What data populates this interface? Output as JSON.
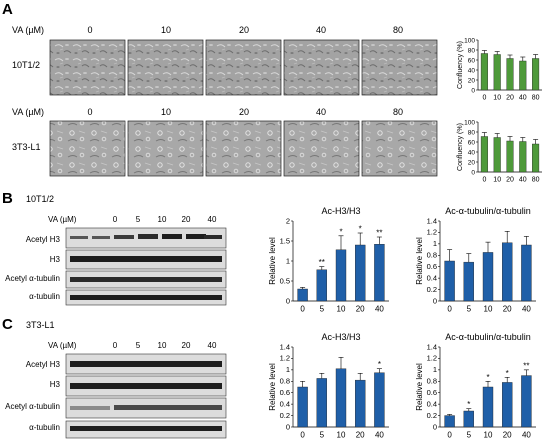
{
  "panels": {
    "A": {
      "letter": "A",
      "conc_label": "VA (µM)",
      "concentrations": [
        "0",
        "10",
        "20",
        "40",
        "80"
      ],
      "rows": [
        {
          "cell_line": "10T1/2"
        },
        {
          "cell_line": "3T3-L1"
        }
      ]
    },
    "B": {
      "letter": "B",
      "cell_line": "10T1/2",
      "conc_label": "VA (µM)",
      "concentrations": [
        "0",
        "5",
        "10",
        "20",
        "40"
      ],
      "blot_labels": [
        "Acetyl H3",
        "H3",
        "Acetyl α-tubulin",
        "α-tubulin"
      ]
    },
    "C": {
      "letter": "C",
      "cell_line": "3T3-L1",
      "conc_label": "VA (µM)",
      "concentrations": [
        "0",
        "5",
        "10",
        "20",
        "40"
      ],
      "blot_labels": [
        "Acetyl H3",
        "H3",
        "Acetyl α-tubulin",
        "α-tubulin"
      ]
    }
  },
  "colors": {
    "green_bar": "#4e9a3a",
    "blue_bar": "#1f5fa8",
    "blot_bg": "#dcdcdc",
    "band": "#1e1e1e",
    "micrograph_bg": "#9a9a9a"
  },
  "chart_data": [
    {
      "id": "A-10T1/2",
      "type": "bar",
      "title": "",
      "ylabel": "Confluency (%)",
      "categories": [
        "0",
        "10",
        "20",
        "40",
        "80"
      ],
      "values": [
        73,
        71,
        63,
        58,
        63
      ],
      "errors": [
        6,
        6,
        7,
        8,
        8
      ],
      "ylim": [
        0,
        100
      ],
      "yticks": [
        0,
        20,
        40,
        60,
        80,
        100
      ],
      "significance": [
        "",
        "",
        "",
        "",
        ""
      ],
      "color": "#4e9a3a"
    },
    {
      "id": "A-3T3-L1",
      "type": "bar",
      "title": "",
      "ylabel": "Confluency (%)",
      "categories": [
        "0",
        "10",
        "20",
        "40",
        "80"
      ],
      "values": [
        71,
        69,
        62,
        61,
        56
      ],
      "errors": [
        8,
        8,
        9,
        8,
        9
      ],
      "ylim": [
        0,
        100
      ],
      "yticks": [
        0,
        20,
        40,
        60,
        80,
        100
      ],
      "significance": [
        "",
        "",
        "",
        "",
        ""
      ],
      "color": "#4e9a3a"
    },
    {
      "id": "B-AcH3",
      "type": "bar",
      "title": "Ac-H3/H3",
      "ylabel": "Relative level",
      "categories": [
        "0",
        "5",
        "10",
        "20",
        "40"
      ],
      "values": [
        0.3,
        0.78,
        1.28,
        1.4,
        1.42
      ],
      "errors": [
        0.04,
        0.08,
        0.35,
        0.3,
        0.18
      ],
      "ylim": [
        0,
        2.0
      ],
      "yticks": [
        0,
        0.5,
        1.0,
        1.5,
        2.0
      ],
      "significance": [
        "",
        "**",
        "*",
        "*",
        "**"
      ],
      "color": "#1f5fa8"
    },
    {
      "id": "B-AcTub",
      "type": "bar",
      "title": "Ac-α-tubulin/α-tubulin",
      "ylabel": "Relative level",
      "categories": [
        "0",
        "5",
        "10",
        "20",
        "40"
      ],
      "values": [
        0.7,
        0.68,
        0.85,
        1.02,
        0.98
      ],
      "errors": [
        0.2,
        0.15,
        0.18,
        0.2,
        0.15
      ],
      "ylim": [
        0,
        1.4
      ],
      "yticks": [
        0,
        0.2,
        0.4,
        0.6,
        0.8,
        1.0,
        1.2,
        1.4
      ],
      "significance": [
        "",
        "",
        "",
        "",
        ""
      ],
      "color": "#1f5fa8"
    },
    {
      "id": "C-AcH3",
      "type": "bar",
      "title": "Ac-H3/H3",
      "ylabel": "Relative level",
      "categories": [
        "0",
        "5",
        "10",
        "20",
        "40"
      ],
      "values": [
        0.7,
        0.85,
        1.02,
        0.82,
        0.95
      ],
      "errors": [
        0.1,
        0.09,
        0.2,
        0.12,
        0.07
      ],
      "ylim": [
        0,
        1.4
      ],
      "yticks": [
        0,
        0.2,
        0.4,
        0.6,
        0.8,
        1.0,
        1.2,
        1.4
      ],
      "significance": [
        "",
        "",
        "",
        "",
        "*"
      ],
      "color": "#1f5fa8"
    },
    {
      "id": "C-AcTub",
      "type": "bar",
      "title": "Ac-α-tubulin/α-tubulin",
      "ylabel": "Relative level",
      "categories": [
        "0",
        "5",
        "10",
        "20",
        "40"
      ],
      "values": [
        0.2,
        0.28,
        0.7,
        0.78,
        0.9
      ],
      "errors": [
        0.02,
        0.04,
        0.1,
        0.09,
        0.1
      ],
      "ylim": [
        0,
        1.4
      ],
      "yticks": [
        0,
        0.2,
        0.4,
        0.6,
        0.8,
        1.0,
        1.2,
        1.4
      ],
      "significance": [
        "",
        "*",
        "*",
        "*",
        "**"
      ],
      "color": "#1f5fa8"
    }
  ]
}
